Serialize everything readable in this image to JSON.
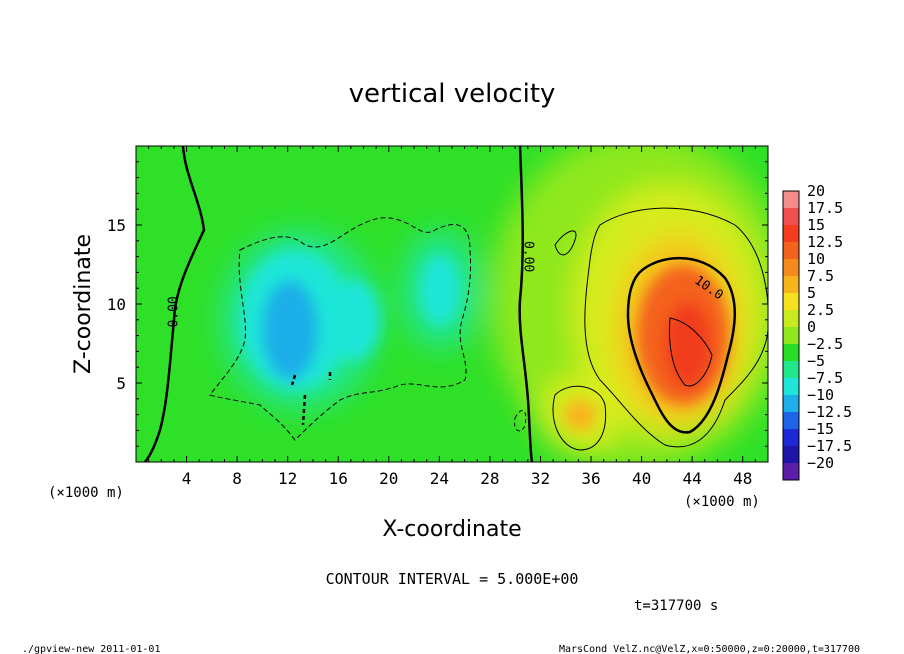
{
  "chart_data": {
    "type": "heatmap",
    "title": "vertical velocity",
    "xlabel": "X-coordinate",
    "ylabel": "Z-coordinate",
    "x_unit_label": "(×1000 m)",
    "y_unit_label": "(×1000 m)",
    "xlim": [
      0,
      50
    ],
    "ylim": [
      0,
      20
    ],
    "x_ticks": [
      "4",
      "8",
      "12",
      "16",
      "20",
      "24",
      "28",
      "32",
      "36",
      "40",
      "44",
      "48"
    ],
    "y_ticks": [
      "5",
      "10",
      "15"
    ],
    "contour_interval_text": "CONTOUR INTERVAL = 5.000E+00",
    "time_text": "t=317700 s",
    "contour_labels": [
      {
        "text": "0.00",
        "x": 3.0,
        "y": 9.5,
        "rot": -90
      },
      {
        "text": "0.00",
        "x": 31.0,
        "y": 13.0,
        "rot": 90
      },
      {
        "text": "10.0",
        "x": 45.3,
        "y": 11.0,
        "rot": 35
      }
    ],
    "colorbar": {
      "levels": [
        "20",
        "17.5",
        "15",
        "12.5",
        "10",
        "7.5",
        "5",
        "2.5",
        "0",
        "−2.5",
        "−5",
        "−7.5",
        "−10",
        "−12.5",
        "−15",
        "−17.5",
        "−20"
      ],
      "colors": [
        "#f48c8c",
        "#f25050",
        "#f23d1e",
        "#f4621e",
        "#f58a1e",
        "#f8b41c",
        "#f5e11e",
        "#c9ea1e",
        "#8ee81e",
        "#28dc28",
        "#21e68c",
        "#1ee6d8",
        "#1eaee8",
        "#1e64e8",
        "#1e28d6",
        "#1e14a8",
        "#5a1ea8"
      ]
    },
    "features": [
      {
        "name": "updraft",
        "x": 43.5,
        "y": 7.5,
        "peak": 15
      },
      {
        "name": "downdraft",
        "x": 12,
        "y": 8.5,
        "peak": -10
      },
      {
        "name": "downdraft",
        "x": 22,
        "y": 11,
        "peak": -5
      }
    ]
  },
  "footer": {
    "left": "./gpview-new  2011-01-01",
    "right": "MarsCond_VelZ.nc@VelZ,x=0:50000,z=0:20000,t=317700"
  }
}
